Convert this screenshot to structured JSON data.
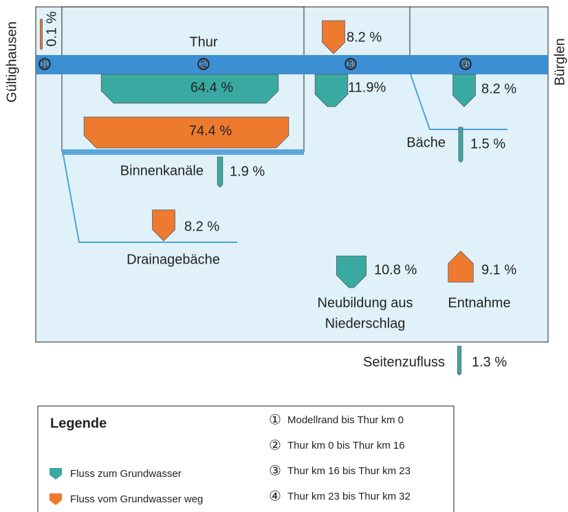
{
  "labels": {
    "left": "Gültighausen",
    "right": "Bürglen",
    "river": "Thur",
    "streams": "Bäche",
    "canals": "Binnenkanäle",
    "drains": "Drainagebäche",
    "recharge": [
      "Neubildung aus",
      "Niederschlag"
    ],
    "withdrawal": "Entnahme",
    "lateral": "Seitenzufluss"
  },
  "sections": [
    "①",
    "②",
    "③",
    "④"
  ],
  "flows": [
    {
      "value": 0.1,
      "label": "0.1 %",
      "color": "#ee7a30"
    },
    {
      "value": 64.4,
      "label": "64.4 %",
      "color": "#3aa9a1"
    },
    {
      "value": 74.4,
      "label": "74.4 %",
      "color": "#ee7a30"
    },
    {
      "value": 8.2,
      "label": "8.2 %",
      "color": "#ee7a30"
    },
    {
      "value": 11.9,
      "label": "11.9%",
      "color": "#3aa9a1"
    },
    {
      "value": 8.2,
      "label": "8.2 %",
      "color": "#3aa9a1"
    },
    {
      "value": 1.5,
      "label": "1.5 %",
      "color": "#3aa9a1"
    },
    {
      "value": 1.9,
      "label": "1.9 %",
      "color": "#3aa9a1"
    },
    {
      "value": 8.2,
      "label": "8.2 %",
      "color": "#ee7a30"
    },
    {
      "value": 10.8,
      "label": "10.8 %",
      "color": "#3aa9a1"
    },
    {
      "value": 9.1,
      "label": "9.1 %",
      "color": "#ee7a30"
    },
    {
      "value": 1.3,
      "label": "1.3 %",
      "color": "#3aa9a1"
    }
  ],
  "legend": {
    "title": "Legende",
    "to": "Fluss zum Grundwasser",
    "from": "Fluss vom Grundwasser weg",
    "sections": [
      "Modellrand bis Thur km 0",
      "Thur km 0 bis Thur km 16",
      "Thur km 16 bis Thur km 23",
      "Thur km 23 bis Thur km 32"
    ]
  }
}
